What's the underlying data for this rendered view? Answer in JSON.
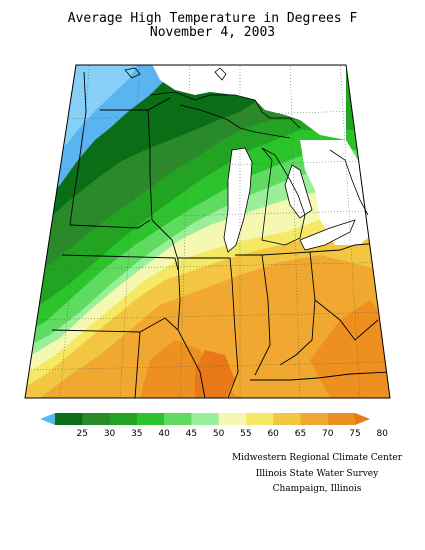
{
  "title": {
    "line1": "Average High Temperature in Degrees F",
    "line2": "November 4, 2003"
  },
  "legend": {
    "unit": "Degrees F",
    "ticks": [
      "25",
      "30",
      "35",
      "40",
      "45",
      "50",
      "55",
      "60",
      "65",
      "70",
      "75",
      "80"
    ],
    "colors": [
      "#5ab4f0",
      "#0a6e16",
      "#2a8a2a",
      "#22a322",
      "#2cc42c",
      "#5fdc5f",
      "#9af09a",
      "#f4f8b0",
      "#f4e865",
      "#f2c640",
      "#f0a830",
      "#ee9020",
      "#e87818"
    ]
  },
  "map_region": "Midwest United States (Upper Midwest, Great Lakes, Ohio Valley)",
  "credits": {
    "line1": "Midwestern Regional Climate Center",
    "line2": "Illinois State Water Survey",
    "line3": "Champaign, Illinois"
  }
}
